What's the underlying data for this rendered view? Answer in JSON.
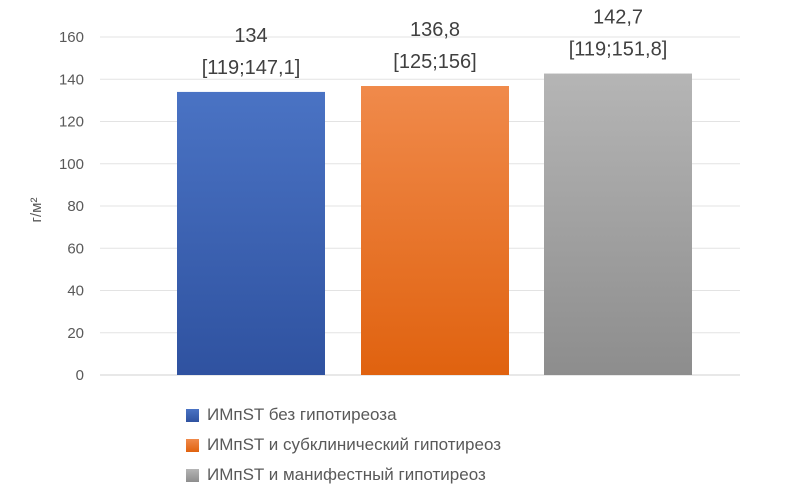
{
  "chart_data": {
    "type": "bar",
    "ylabel": "г/м²",
    "ylim": [
      0,
      160
    ],
    "yticks": [
      0,
      20,
      40,
      60,
      80,
      100,
      120,
      140,
      160
    ],
    "grid": true,
    "legend_position": "bottom",
    "series": [
      {
        "name": "ИМпST без гипотиреоза",
        "value": 134,
        "label": "134",
        "ci": "[119;147,1]",
        "color_top": "#4a73c4",
        "color_bottom": "#2f52a0"
      },
      {
        "name": "ИМпST и субклинический гипотиреоз",
        "value": 136.8,
        "label": "136,8",
        "ci": "[125;156]",
        "color_top": "#f08a4b",
        "color_bottom": "#e0620f"
      },
      {
        "name": "ИМпST и манифестный гипотиреоз",
        "value": 142.7,
        "label": "142,7",
        "ci": "[119;151,8]",
        "color_top": "#b5b5b5",
        "color_bottom": "#8d8d8d"
      }
    ]
  }
}
